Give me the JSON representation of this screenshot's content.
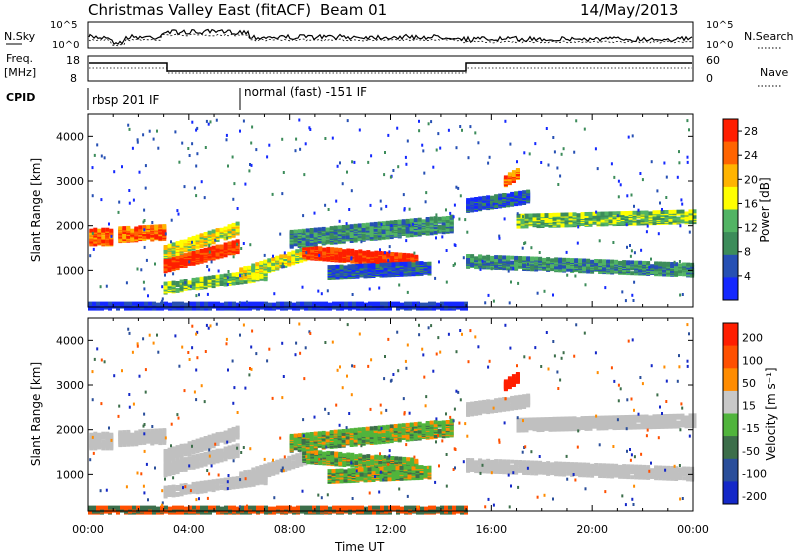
{
  "header": {
    "station": "Christmas Valley East (fitACF)",
    "beam": "Beam 01",
    "date": "14/May/2013"
  },
  "noise_panel": {
    "left_label": "N.Sky",
    "right_label": "N.Search",
    "ticks_left": [
      "10^5",
      "10^0"
    ],
    "ticks_right": [
      "10^5",
      "10^0"
    ]
  },
  "freq_panel": {
    "left_label_1": "Freq.",
    "left_label_2": "[MHz]",
    "right_label": "Nave",
    "ticks_left": [
      "18",
      "8"
    ],
    "ticks_right": [
      "60",
      "0"
    ]
  },
  "cpid_panel": {
    "label": "CPID",
    "modes": [
      "rbsp 201 IF",
      "normal (fast) -151 IF"
    ]
  },
  "colors": {
    "power_scale": [
      "#1428ff",
      "#2650b4",
      "#3c8c5a",
      "#52b464",
      "#ffff00",
      "#ffb400",
      "#ff6400",
      "#ff1e00"
    ],
    "velocity_scale": [
      "#1428c8",
      "#2a4e9a",
      "#3c6e4a",
      "#50b43c",
      "#c8c8c8",
      "#ff8c00",
      "#ff5000",
      "#ff1e00"
    ],
    "ground_scatter": "#c0c0c0"
  },
  "chart_data": [
    {
      "type": "heatmap",
      "title": "Power",
      "xlabel": "",
      "ylabel": "Slant Range [km]",
      "x_ticks": [
        "00:00",
        "04:00",
        "08:00",
        "12:00",
        "16:00",
        "20:00",
        "00:00"
      ],
      "x_range_hours": [
        0,
        24
      ],
      "y_ticks": [
        1000,
        2000,
        3000,
        4000
      ],
      "y_range_km": [
        180,
        4500
      ],
      "colorbar": {
        "label": "Power [dB]",
        "ticks": [
          4,
          8,
          12,
          16,
          20,
          24,
          28
        ],
        "range": [
          0,
          30
        ]
      },
      "grid": false
    },
    {
      "type": "heatmap",
      "title": "Velocity",
      "xlabel": "Time UT",
      "ylabel": "Slant Range [km]",
      "x_ticks": [
        "00:00",
        "04:00",
        "08:00",
        "12:00",
        "16:00",
        "20:00",
        "00:00"
      ],
      "x_range_hours": [
        0,
        24
      ],
      "y_ticks": [
        1000,
        2000,
        3000,
        4000
      ],
      "y_range_km": [
        180,
        4500
      ],
      "colorbar": {
        "label": "Velocity [m s⁻¹]",
        "ticks": [
          200,
          100,
          50,
          15,
          -15,
          -50,
          -100,
          -200
        ]
      },
      "grid": false
    }
  ]
}
